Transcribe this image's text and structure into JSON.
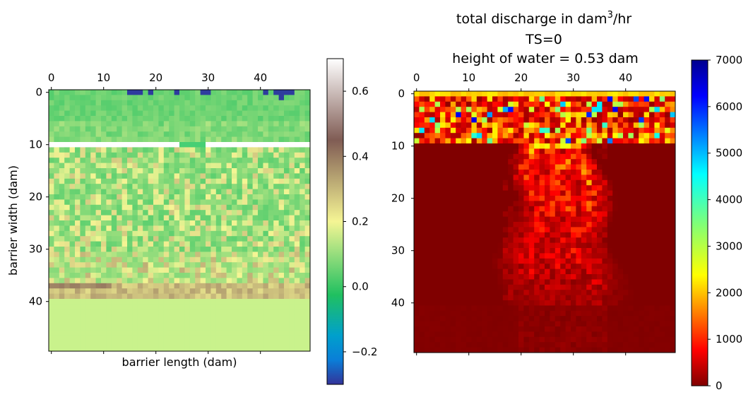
{
  "chart_data": [
    {
      "type": "heatmap",
      "title": "",
      "xlabel": "barrier length (dam)",
      "ylabel": "barrier width (dam)",
      "grid_size": [
        50,
        50
      ],
      "x_ticks": [
        0,
        10,
        20,
        30,
        40
      ],
      "y_ticks": [
        0,
        10,
        20,
        30,
        40
      ],
      "x_ticks_position": "top",
      "colormap": "terrain",
      "colorbar": {
        "min": -0.3,
        "max": 0.7,
        "ticks": [
          -0.2,
          0.0,
          0.2,
          0.4,
          0.6
        ],
        "tick_labels": [
          "−0.2",
          "0.0",
          "0.2",
          "0.4",
          "0.6"
        ]
      },
      "colors": {
        "ocean_blue": "#2e3c9e",
        "vegetation_green": "#47cf74",
        "sand_light": "#c9f28c",
        "sand_dark": "#c7b07e"
      },
      "regions": [
        {
          "rows": [
            0,
            9
          ],
          "value_range": [
            0.02,
            0.1
          ],
          "note": "ocean-side green band"
        },
        {
          "rows": [
            10,
            10
          ],
          "value": 0.6,
          "note": "white dune crest row"
        },
        {
          "rows": [
            11,
            36
          ],
          "value_range": [
            0.02,
            0.28
          ],
          "note": "mixed green-yellow"
        },
        {
          "rows": [
            37,
            39
          ],
          "value_range": [
            0.22,
            0.38
          ],
          "note": "tan back-barrier strip"
        },
        {
          "rows": [
            40,
            49
          ],
          "value": 0.22,
          "note": "uniform light green"
        }
      ],
      "ocean_cells_row0_cols": [
        15,
        16,
        17,
        19,
        24,
        29,
        30,
        41,
        43,
        44,
        45,
        46
      ]
    },
    {
      "type": "heatmap",
      "title_line1": "total discharge in dam",
      "title_sup": "3",
      "title_line1_suffix": "/hr",
      "title_line2": "TS=0",
      "title_line3": "height of water = 0.53 dam",
      "xlabel": "",
      "ylabel": "",
      "grid_size": [
        50,
        50
      ],
      "x_ticks": [
        0,
        10,
        20,
        30,
        40
      ],
      "y_ticks": [
        0,
        10,
        20,
        30,
        40
      ],
      "x_ticks_position": "top",
      "colormap": "jet_r",
      "colorbar": {
        "min": 0,
        "max": 7000,
        "ticks": [
          0,
          1000,
          2000,
          3000,
          4000,
          5000,
          6000,
          7000
        ]
      },
      "regions": [
        {
          "rows": [
            0,
            0
          ],
          "value_range": [
            1800,
            2300
          ],
          "note": "yellow top row"
        },
        {
          "rows": [
            1,
            9
          ],
          "value_range": [
            200,
            7000
          ],
          "note": "high variable discharge"
        },
        {
          "rows": [
            10,
            40
          ],
          "value_range": [
            0,
            2200
          ],
          "note": "channel plume around cols 17-36"
        },
        {
          "rows": [
            41,
            49
          ],
          "value_range": [
            0,
            200
          ],
          "note": "near-zero"
        }
      ]
    }
  ]
}
